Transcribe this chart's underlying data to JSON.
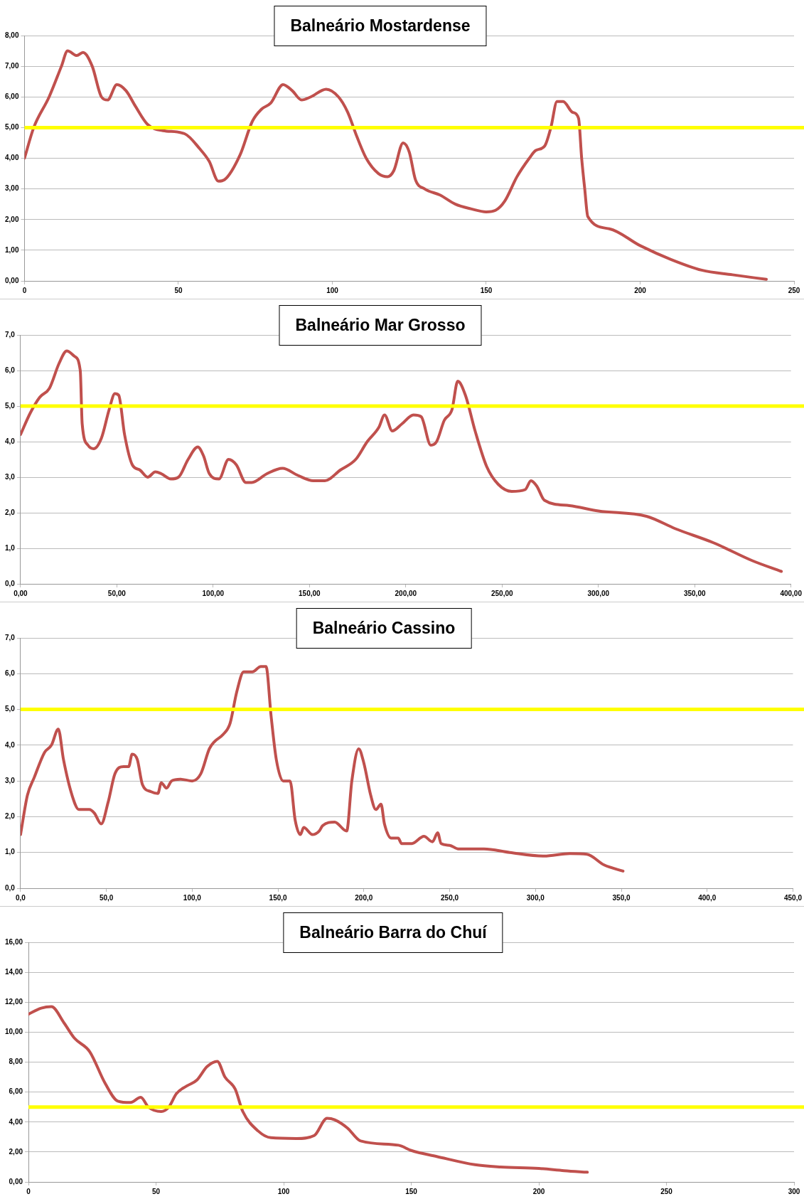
{
  "chart_data": [
    {
      "type": "line",
      "title": "Balneário Mostardense",
      "xlim": [
        0,
        250
      ],
      "xticks": [
        0,
        50,
        100,
        150,
        200,
        250
      ],
      "ylim": [
        0,
        8
      ],
      "yticks": [
        {
          "value": 0,
          "label": "0,00"
        },
        {
          "value": 1,
          "label": "1,00"
        },
        {
          "value": 2,
          "label": "2,00"
        },
        {
          "value": 3,
          "label": "3,00"
        },
        {
          "value": 4,
          "label": "4,00"
        },
        {
          "value": 5,
          "label": "5,00"
        },
        {
          "value": 6,
          "label": "6,00"
        },
        {
          "value": 7,
          "label": "7,00"
        },
        {
          "value": 8,
          "label": "8,00"
        }
      ],
      "grid": "y",
      "legend": false,
      "marker": "none",
      "line_style": "solid",
      "ref_lines": [
        {
          "axis": "y",
          "value": 5,
          "color": "#ffff00"
        }
      ],
      "series": [
        {
          "color": "#c0504d",
          "x": [
            0,
            3,
            8,
            12,
            14,
            17,
            19,
            22,
            25,
            27,
            30,
            33,
            36,
            40,
            45,
            52,
            57,
            60,
            63,
            65,
            70,
            74,
            77,
            80,
            84,
            87,
            90,
            93,
            98,
            102,
            105,
            108,
            111,
            115,
            118,
            120,
            123,
            125,
            127,
            130,
            135,
            140,
            145,
            150,
            153,
            156,
            160,
            164,
            166,
            169,
            171,
            173,
            175,
            178,
            180,
            181,
            182,
            183,
            190,
            200,
            210,
            220,
            230,
            241
          ],
          "values": [
            4.0,
            5.0,
            6.0,
            7.0,
            7.5,
            7.35,
            7.45,
            7.0,
            6.0,
            5.9,
            6.4,
            6.2,
            5.7,
            5.1,
            4.9,
            4.8,
            4.3,
            3.9,
            3.25,
            3.3,
            4.1,
            5.2,
            5.6,
            5.8,
            6.4,
            6.2,
            5.9,
            6.0,
            6.25,
            6.0,
            5.5,
            4.7,
            4.0,
            3.5,
            3.4,
            3.6,
            4.5,
            4.2,
            3.3,
            3.0,
            2.8,
            2.5,
            2.35,
            2.25,
            2.3,
            2.6,
            3.4,
            4.0,
            4.25,
            4.4,
            5.0,
            5.85,
            5.85,
            5.5,
            5.3,
            4.0,
            3.0,
            2.1,
            1.7,
            1.15,
            0.7,
            0.35,
            0.2,
            0.05
          ]
        }
      ]
    },
    {
      "type": "line",
      "title": "Balneário Mar Grosso",
      "xlim": [
        0,
        400
      ],
      "xticks": [
        {
          "value": 0,
          "label": "0,00"
        },
        {
          "value": 50,
          "label": "50,00"
        },
        {
          "value": 100,
          "label": "100,00"
        },
        {
          "value": 150,
          "label": "150,00"
        },
        {
          "value": 200,
          "label": "200,00"
        },
        {
          "value": 250,
          "label": "250,00"
        },
        {
          "value": 300,
          "label": "300,00"
        },
        {
          "value": 350,
          "label": "350,00"
        },
        {
          "value": 400,
          "label": "400,00"
        }
      ],
      "ylim": [
        0,
        7
      ],
      "yticks": [
        {
          "value": 0,
          "label": "0,0"
        },
        {
          "value": 1,
          "label": "1,0"
        },
        {
          "value": 2,
          "label": "2,0"
        },
        {
          "value": 3,
          "label": "3,0"
        },
        {
          "value": 4,
          "label": "4,0"
        },
        {
          "value": 5,
          "label": "5,0"
        },
        {
          "value": 6,
          "label": "6,0"
        },
        {
          "value": 7,
          "label": "7,0"
        }
      ],
      "grid": "y",
      "legend": false,
      "marker": "none",
      "line_style": "solid",
      "ref_lines": [
        {
          "axis": "y",
          "value": 5,
          "color": "#ffff00"
        }
      ],
      "series": [
        {
          "color": "#c0504d",
          "x": [
            0,
            5,
            10,
            15,
            20,
            24,
            28,
            31,
            32,
            35,
            38,
            42,
            46,
            49,
            51,
            54,
            58,
            62,
            66,
            70,
            73,
            78,
            82,
            87,
            92,
            95,
            98,
            103,
            108,
            112,
            117,
            120,
            128,
            136,
            144,
            152,
            158,
            166,
            174,
            180,
            186,
            189,
            193,
            198,
            204,
            208,
            213,
            216,
            220,
            224,
            227,
            231,
            236,
            242,
            248,
            255,
            262,
            265,
            268,
            272,
            285,
            300,
            325,
            340,
            360,
            380,
            395
          ],
          "values": [
            4.2,
            4.8,
            5.25,
            5.5,
            6.2,
            6.55,
            6.4,
            6.0,
            4.5,
            3.9,
            3.8,
            4.1,
            4.9,
            5.35,
            5.3,
            4.2,
            3.35,
            3.2,
            3.0,
            3.15,
            3.1,
            2.95,
            3.0,
            3.5,
            3.85,
            3.6,
            3.1,
            2.95,
            3.5,
            3.35,
            2.85,
            2.85,
            3.1,
            3.25,
            3.05,
            2.9,
            2.9,
            3.2,
            3.5,
            4.0,
            4.4,
            4.75,
            4.3,
            4.5,
            4.75,
            4.7,
            3.9,
            4.0,
            4.6,
            4.9,
            5.7,
            5.3,
            4.3,
            3.3,
            2.8,
            2.6,
            2.65,
            2.9,
            2.75,
            2.35,
            2.2,
            2.05,
            1.9,
            1.55,
            1.15,
            0.65,
            0.35
          ]
        }
      ]
    },
    {
      "type": "line",
      "title": "Balneário Cassino",
      "xlim": [
        0,
        450
      ],
      "xticks": [
        {
          "value": 0,
          "label": "0,0"
        },
        {
          "value": 50,
          "label": "50,0"
        },
        {
          "value": 100,
          "label": "100,0"
        },
        {
          "value": 150,
          "label": "150,0"
        },
        {
          "value": 200,
          "label": "200,0"
        },
        {
          "value": 250,
          "label": "250,0"
        },
        {
          "value": 300,
          "label": "300,0"
        },
        {
          "value": 350,
          "label": "350,0"
        },
        {
          "value": 400,
          "label": "400,0"
        },
        {
          "value": 450,
          "label": "450,0"
        }
      ],
      "ylim": [
        0,
        7
      ],
      "yticks": [
        {
          "value": 0,
          "label": "0,0"
        },
        {
          "value": 1,
          "label": "1,0"
        },
        {
          "value": 2,
          "label": "2,0"
        },
        {
          "value": 3,
          "label": "3,0"
        },
        {
          "value": 4,
          "label": "4,0"
        },
        {
          "value": 5,
          "label": "5,0"
        },
        {
          "value": 6,
          "label": "6,0"
        },
        {
          "value": 7,
          "label": "7,0"
        }
      ],
      "grid": "y",
      "legend": false,
      "marker": "none",
      "line_style": "solid",
      "ref_lines": [
        {
          "axis": "y",
          "value": 5,
          "color": "#ffff00"
        }
      ],
      "series": [
        {
          "color": "#c0504d",
          "x": [
            0,
            4,
            8,
            14,
            18,
            22,
            25,
            30,
            34,
            40,
            43,
            47,
            51,
            55,
            60,
            63,
            65,
            68,
            71,
            76,
            80,
            82,
            85,
            88,
            93,
            100,
            105,
            110,
            113,
            118,
            122,
            126,
            130,
            135,
            140,
            143,
            146,
            149,
            153,
            157,
            160,
            163,
            165,
            170,
            174,
            176,
            183,
            190,
            193,
            197,
            200,
            204,
            207,
            210,
            212,
            216,
            220,
            222,
            228,
            235,
            240,
            243,
            245,
            250,
            255,
            270,
            285,
            305,
            320,
            330,
            340,
            351
          ],
          "values": [
            1.5,
            2.6,
            3.1,
            3.8,
            4.0,
            4.45,
            3.6,
            2.6,
            2.2,
            2.2,
            2.1,
            1.8,
            2.4,
            3.2,
            3.4,
            3.4,
            3.75,
            3.6,
            2.9,
            2.7,
            2.65,
            2.95,
            2.8,
            3.0,
            3.05,
            3.0,
            3.2,
            3.9,
            4.1,
            4.3,
            4.6,
            5.5,
            6.05,
            6.05,
            6.2,
            6.2,
            4.8,
            3.6,
            3.0,
            3.0,
            1.9,
            1.5,
            1.7,
            1.5,
            1.6,
            1.75,
            1.85,
            1.6,
            3.0,
            3.9,
            3.5,
            2.6,
            2.2,
            2.35,
            1.8,
            1.4,
            1.4,
            1.25,
            1.25,
            1.45,
            1.3,
            1.55,
            1.25,
            1.2,
            1.1,
            1.1,
            1.0,
            0.9,
            0.97,
            0.95,
            0.65,
            0.48
          ]
        }
      ]
    },
    {
      "type": "line",
      "title": "Balneário Barra do Chuí",
      "xlim": [
        0,
        300
      ],
      "xticks": [
        0,
        50,
        100,
        150,
        200,
        250,
        300
      ],
      "ylim": [
        0,
        16
      ],
      "yticks": [
        {
          "value": 0,
          "label": "0,00"
        },
        {
          "value": 2,
          "label": "2,00"
        },
        {
          "value": 4,
          "label": "4,00"
        },
        {
          "value": 6,
          "label": "6,00"
        },
        {
          "value": 8,
          "label": "8,00"
        },
        {
          "value": 10,
          "label": "10,00"
        },
        {
          "value": 12,
          "label": "12,00"
        },
        {
          "value": 14,
          "label": "14,00"
        },
        {
          "value": 16,
          "label": "16,00"
        }
      ],
      "grid": "y",
      "legend": false,
      "marker": "none",
      "line_style": "solid",
      "ref_lines": [
        {
          "axis": "y",
          "value": 5,
          "color": "#ffff00"
        }
      ],
      "series": [
        {
          "color": "#c0504d",
          "x": [
            0,
            5,
            9,
            14,
            18,
            24,
            30,
            35,
            40,
            44,
            47,
            52,
            55,
            58,
            62,
            66,
            70,
            74,
            77,
            81,
            84,
            90,
            95,
            105,
            112,
            117,
            120,
            125,
            130,
            145,
            150,
            160,
            175,
            185,
            200,
            210,
            219
          ],
          "values": [
            11.2,
            11.6,
            11.7,
            10.6,
            9.6,
            8.7,
            6.6,
            5.4,
            5.3,
            5.65,
            5.0,
            4.7,
            5.0,
            5.9,
            6.4,
            6.8,
            7.7,
            8.05,
            7.0,
            6.2,
            4.7,
            3.4,
            2.95,
            2.9,
            3.1,
            4.25,
            4.15,
            3.6,
            2.75,
            2.45,
            2.1,
            1.7,
            1.15,
            1.0,
            0.9,
            0.75,
            0.65
          ]
        }
      ]
    }
  ]
}
